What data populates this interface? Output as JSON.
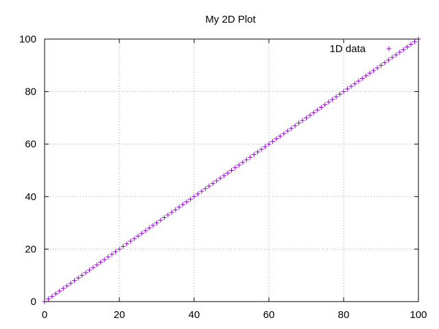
{
  "chart_data": {
    "type": "scatter",
    "title": "My 2D Plot",
    "xlabel": "",
    "ylabel": "",
    "xlim": [
      0,
      100
    ],
    "ylim": [
      0,
      100
    ],
    "x_ticks": [
      "0",
      "20",
      "40",
      "60",
      "80",
      "100"
    ],
    "y_ticks": [
      "0",
      "20",
      "40",
      "60",
      "80",
      "100"
    ],
    "grid": true,
    "legend_position": "top-right",
    "marker": "plus",
    "series": [
      {
        "name": "1D data",
        "color": "#9400d3",
        "x": [
          0,
          1,
          2,
          3,
          4,
          5,
          6,
          7,
          8,
          9,
          10,
          11,
          12,
          13,
          14,
          15,
          16,
          17,
          18,
          19,
          20,
          21,
          22,
          23,
          24,
          25,
          26,
          27,
          28,
          29,
          30,
          31,
          32,
          33,
          34,
          35,
          36,
          37,
          38,
          39,
          40,
          41,
          42,
          43,
          44,
          45,
          46,
          47,
          48,
          49,
          50,
          51,
          52,
          53,
          54,
          55,
          56,
          57,
          58,
          59,
          60,
          61,
          62,
          63,
          64,
          65,
          66,
          67,
          68,
          69,
          70,
          71,
          72,
          73,
          74,
          75,
          76,
          77,
          78,
          79,
          80,
          81,
          82,
          83,
          84,
          85,
          86,
          87,
          88,
          89,
          90,
          91,
          92,
          93,
          94,
          95,
          96,
          97,
          98,
          99,
          100
        ],
        "y": [
          0,
          1,
          2,
          3,
          4,
          5,
          6,
          7,
          8,
          9,
          10,
          11,
          12,
          13,
          14,
          15,
          16,
          17,
          18,
          19,
          20,
          21,
          22,
          23,
          24,
          25,
          26,
          27,
          28,
          29,
          30,
          31,
          32,
          33,
          34,
          35,
          36,
          37,
          38,
          39,
          40,
          41,
          42,
          43,
          44,
          45,
          46,
          47,
          48,
          49,
          50,
          51,
          52,
          53,
          54,
          55,
          56,
          57,
          58,
          59,
          60,
          61,
          62,
          63,
          64,
          65,
          66,
          67,
          68,
          69,
          70,
          71,
          72,
          73,
          74,
          75,
          76,
          77,
          78,
          79,
          80,
          81,
          82,
          83,
          84,
          85,
          86,
          87,
          88,
          89,
          90,
          91,
          92,
          93,
          94,
          95,
          96,
          97,
          98,
          99,
          100
        ]
      }
    ]
  }
}
